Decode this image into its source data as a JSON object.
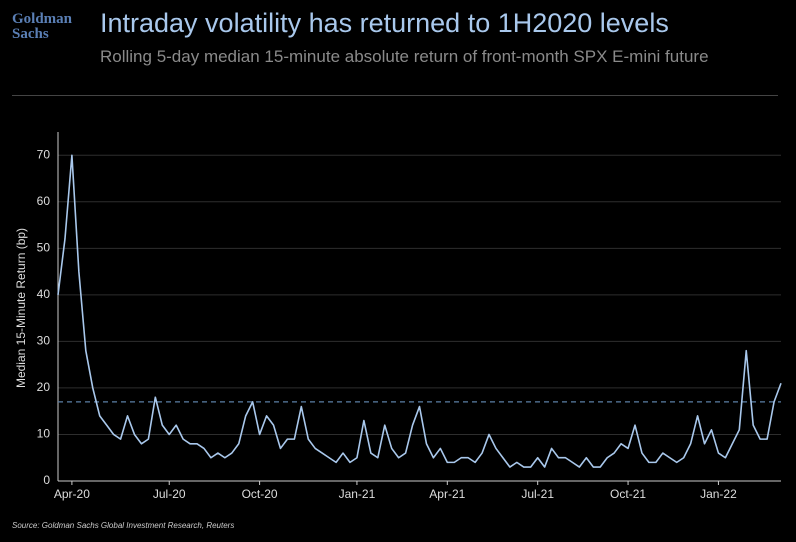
{
  "logo": [
    "Goldman",
    "Sachs"
  ],
  "chart_data": {
    "type": "line",
    "title": "Intraday volatility has returned to 1H2020 levels",
    "subtitle": "Rolling 5-day median 15-minute absolute return of front-month SPX E-mini future",
    "y_label": "Median 15-Minute Return (bp)",
    "source": "Source: Goldman Sachs Global Investment Research, Reuters",
    "categories": [
      null,
      null,
      "Apr-20",
      null,
      null,
      null,
      null,
      null,
      null,
      null,
      null,
      null,
      null,
      null,
      null,
      null,
      "Jul-20",
      null,
      null,
      null,
      null,
      null,
      null,
      null,
      null,
      null,
      null,
      null,
      null,
      "Oct-20",
      null,
      null,
      null,
      null,
      null,
      null,
      null,
      null,
      null,
      null,
      null,
      null,
      null,
      "Jan-21",
      null,
      null,
      null,
      null,
      null,
      null,
      null,
      null,
      null,
      null,
      null,
      null,
      "Apr-21",
      null,
      null,
      null,
      null,
      null,
      null,
      null,
      null,
      null,
      null,
      null,
      null,
      "Jul-21",
      null,
      null,
      null,
      null,
      null,
      null,
      null,
      null,
      null,
      null,
      null,
      null,
      "Oct-21",
      null,
      null,
      null,
      null,
      null,
      null,
      null,
      null,
      null,
      null,
      null,
      null,
      "Jan-22",
      null,
      null,
      null,
      null,
      null,
      null,
      null,
      null,
      null
    ],
    "series": [
      {
        "name": "Median 15-Minute Return",
        "color": "#a9c8ec",
        "values": [
          40,
          52,
          70,
          45,
          28,
          20,
          14,
          12,
          10,
          9,
          14,
          10,
          8,
          9,
          18,
          12,
          10,
          12,
          9,
          8,
          8,
          7,
          5,
          6,
          5,
          6,
          8,
          14,
          17,
          10,
          14,
          12,
          7,
          9,
          9,
          16,
          9,
          7,
          6,
          5,
          4,
          6,
          4,
          5,
          13,
          6,
          5,
          12,
          7,
          5,
          6,
          12,
          16,
          8,
          5,
          7,
          4,
          4,
          5,
          5,
          4,
          6,
          10,
          7,
          5,
          3,
          4,
          3,
          3,
          5,
          3,
          7,
          5,
          5,
          4,
          3,
          5,
          3,
          3,
          5,
          6,
          8,
          7,
          12,
          6,
          4,
          4,
          6,
          5,
          4,
          5,
          8,
          14,
          8,
          11,
          6,
          5,
          8,
          11,
          28,
          12,
          9,
          9,
          17,
          21
        ]
      }
    ],
    "reference_line": {
      "value": 17,
      "color": "#5b7fa6"
    },
    "ylim": [
      0,
      75
    ],
    "yticks": [
      0,
      10,
      20,
      30,
      40,
      50,
      60,
      70
    ],
    "grid": true
  }
}
